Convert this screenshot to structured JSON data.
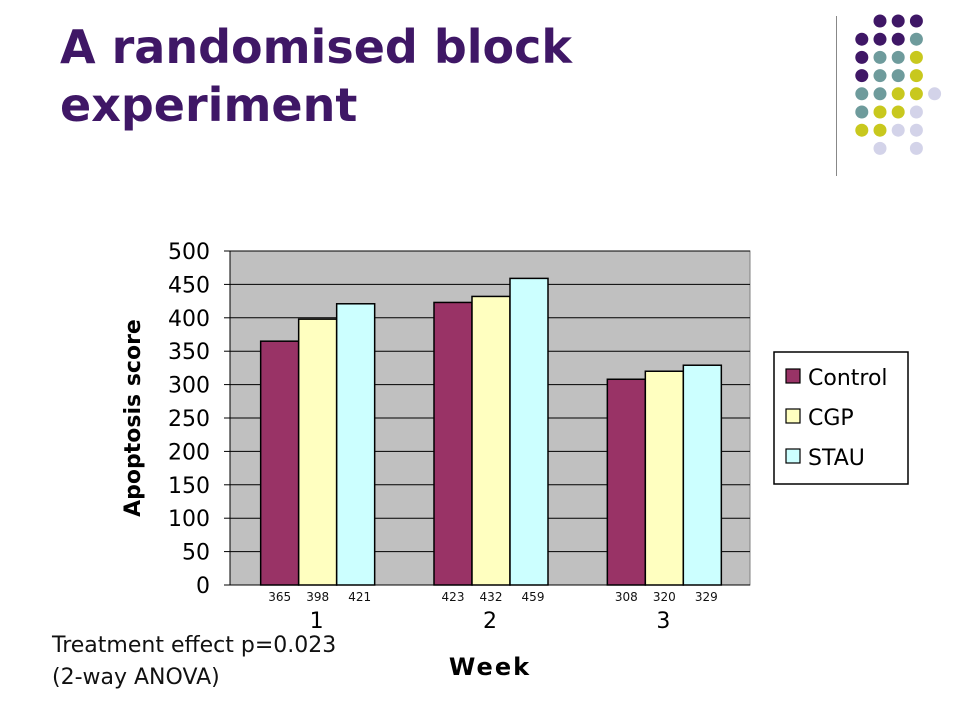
{
  "slide": {
    "title_line1": "A randomised block",
    "title_line2": "experiment",
    "footnote_line1": "Treatment effect p=0.023",
    "footnote_line2": "(2-way ANOVA)"
  },
  "colors": {
    "title": "#3f1766",
    "dot_purple": "#3f1766",
    "dot_teal": "#6e9b9c",
    "dot_olive": "#c8c81e",
    "dot_lavender": "#d3d3e9",
    "plot_bg": "#c0c0c0"
  },
  "chart_data": {
    "type": "bar",
    "categories": [
      "1",
      "2",
      "3"
    ],
    "series": [
      {
        "name": "Control",
        "values": [
          365,
          423,
          308
        ],
        "color": "#993366"
      },
      {
        "name": "CGP",
        "values": [
          398,
          432,
          320
        ],
        "color": "#ffffc0"
      },
      {
        "name": "STAU",
        "values": [
          421,
          459,
          329
        ],
        "color": "#ccffff"
      }
    ],
    "value_labels": [
      [
        "365",
        "398",
        "421"
      ],
      [
        "423",
        "432",
        "459"
      ],
      [
        "308",
        "320",
        "329"
      ]
    ],
    "xlabel": "Week",
    "ylabel": "Apoptosis score",
    "ylim": [
      0,
      500
    ],
    "yticks": [
      0,
      50,
      100,
      150,
      200,
      250,
      300,
      350,
      400,
      450,
      500
    ],
    "grid": true,
    "legend_position": "right"
  }
}
